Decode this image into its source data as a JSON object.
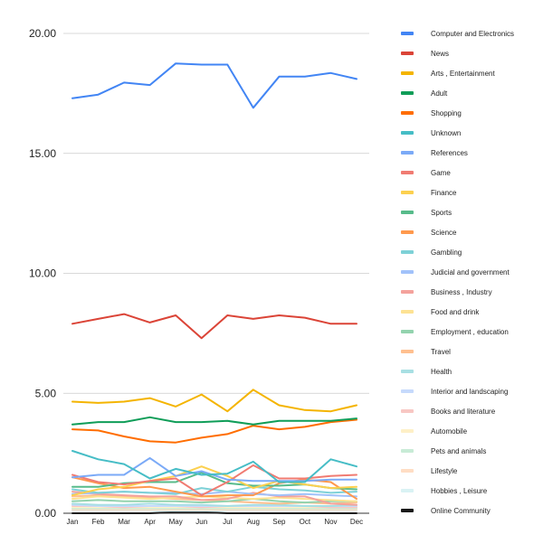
{
  "chart_data": {
    "type": "line",
    "title": "",
    "xlabel": "",
    "ylabel": "",
    "x": [
      "Jan",
      "Feb",
      "Mar",
      "Apr",
      "May",
      "Jun",
      "Jul",
      "Aug",
      "Sep",
      "Oct",
      "Nov",
      "Dec"
    ],
    "ylim": [
      0,
      20
    ],
    "yticks": [
      0,
      5,
      10,
      15,
      20
    ],
    "ytick_labels": [
      "0.00",
      "5.00",
      "10.00",
      "15.00",
      "20.00"
    ],
    "grid": "horizontal",
    "legend_position": "right",
    "series": [
      {
        "name": "Computer and Electronics",
        "color": "#4285F4",
        "values": [
          17.3,
          17.45,
          17.95,
          17.85,
          18.75,
          18.7,
          18.7,
          16.9,
          18.2,
          18.2,
          18.35,
          18.1
        ]
      },
      {
        "name": "News",
        "color": "#DB4437",
        "values": [
          7.9,
          8.1,
          8.3,
          7.95,
          8.25,
          7.3,
          8.25,
          8.1,
          8.25,
          8.15,
          7.9,
          7.9
        ]
      },
      {
        "name": "Arts , Entertainment",
        "color": "#F4B400",
        "values": [
          4.65,
          4.6,
          4.65,
          4.8,
          4.45,
          4.95,
          4.25,
          5.15,
          4.5,
          4.3,
          4.25,
          4.5
        ]
      },
      {
        "name": "Adult",
        "color": "#0F9D58",
        "values": [
          3.7,
          3.8,
          3.8,
          4.0,
          3.8,
          3.8,
          3.85,
          3.7,
          3.85,
          3.85,
          3.85,
          3.95
        ]
      },
      {
        "name": "Shopping",
        "color": "#FF6D00",
        "values": [
          3.5,
          3.45,
          3.2,
          3.0,
          2.95,
          3.15,
          3.3,
          3.65,
          3.5,
          3.6,
          3.8,
          3.9
        ]
      },
      {
        "name": "Unknown",
        "color": "#46BDC6",
        "values": [
          2.6,
          2.25,
          2.05,
          1.45,
          1.85,
          1.6,
          1.65,
          2.15,
          1.3,
          1.3,
          2.25,
          1.95
        ]
      },
      {
        "name": "References",
        "color": "#7BAAF7",
        "values": [
          1.5,
          1.6,
          1.6,
          2.3,
          1.55,
          1.75,
          1.4,
          1.35,
          1.35,
          1.35,
          1.4,
          1.4
        ]
      },
      {
        "name": "Game",
        "color": "#F07B72",
        "values": [
          1.6,
          1.3,
          1.2,
          1.35,
          1.45,
          0.75,
          1.3,
          2.0,
          1.45,
          1.45,
          1.55,
          1.6
        ]
      },
      {
        "name": "Finance",
        "color": "#FCD04F",
        "values": [
          0.75,
          1.0,
          1.1,
          1.35,
          1.55,
          1.95,
          1.55,
          1.05,
          1.35,
          1.2,
          1.05,
          1.1
        ]
      },
      {
        "name": "Sports",
        "color": "#57BB8A",
        "values": [
          1.1,
          1.1,
          1.25,
          1.3,
          1.3,
          1.7,
          1.25,
          1.15,
          1.15,
          1.2,
          1.05,
          1.0
        ]
      },
      {
        "name": "Science",
        "color": "#FF994D",
        "values": [
          1.5,
          1.25,
          1.05,
          1.1,
          0.9,
          0.7,
          0.75,
          0.75,
          1.25,
          1.4,
          1.3,
          0.6
        ]
      },
      {
        "name": "Gambling",
        "color": "#7ED1D7",
        "values": [
          1.0,
          0.85,
          0.9,
          0.85,
          0.8,
          1.05,
          0.9,
          1.1,
          1.0,
          0.95,
          0.85,
          0.9
        ]
      },
      {
        "name": "Judicial and government",
        "color": "#A1C2FA",
        "values": [
          0.8,
          0.85,
          0.9,
          0.85,
          0.85,
          0.8,
          0.9,
          0.8,
          0.75,
          0.8,
          0.75,
          0.7
        ]
      },
      {
        "name": "Business , Industry",
        "color": "#F4A29C",
        "values": [
          0.9,
          0.8,
          0.75,
          0.7,
          0.7,
          0.55,
          0.6,
          0.85,
          0.7,
          0.7,
          0.4,
          0.35
        ]
      },
      {
        "name": "Food and drink",
        "color": "#FDE293",
        "values": [
          0.6,
          0.7,
          0.65,
          0.6,
          0.65,
          0.7,
          0.65,
          0.6,
          0.65,
          0.6,
          0.55,
          0.5
        ]
      },
      {
        "name": "Employment , education",
        "color": "#93D3AE",
        "values": [
          0.5,
          0.55,
          0.5,
          0.5,
          0.5,
          0.45,
          0.5,
          0.6,
          0.5,
          0.45,
          0.5,
          0.5
        ]
      },
      {
        "name": "Travel",
        "color": "#FFBF8F",
        "values": [
          0.7,
          0.75,
          0.7,
          0.65,
          0.6,
          0.55,
          0.5,
          0.45,
          0.4,
          0.45,
          0.4,
          0.45
        ]
      },
      {
        "name": "Health",
        "color": "#A8DFE3",
        "values": [
          0.4,
          0.35,
          0.35,
          0.4,
          0.35,
          0.35,
          0.3,
          0.35,
          0.35,
          0.3,
          0.3,
          0.35
        ]
      },
      {
        "name": "Interior and landscaping",
        "color": "#C6DAFC",
        "values": [
          0.35,
          0.3,
          0.3,
          0.3,
          0.3,
          0.3,
          0.3,
          0.3,
          0.3,
          0.3,
          0.3,
          0.3
        ]
      },
      {
        "name": "Books and literature",
        "color": "#F8C7C3",
        "values": [
          0.3,
          0.3,
          0.25,
          0.3,
          0.3,
          0.25,
          0.3,
          0.3,
          0.3,
          0.3,
          0.25,
          0.25
        ]
      },
      {
        "name": "Automobile",
        "color": "#FEF0C7",
        "values": [
          0.25,
          0.25,
          0.25,
          0.25,
          0.25,
          0.25,
          0.25,
          0.25,
          0.25,
          0.25,
          0.25,
          0.25
        ]
      },
      {
        "name": "Pets and animals",
        "color": "#C8EBD6",
        "values": [
          0.2,
          0.2,
          0.2,
          0.2,
          0.2,
          0.2,
          0.2,
          0.2,
          0.2,
          0.2,
          0.2,
          0.2
        ]
      },
      {
        "name": "Lifestyle",
        "color": "#FFDDC4",
        "values": [
          0.15,
          0.15,
          0.15,
          0.15,
          0.15,
          0.15,
          0.15,
          0.15,
          0.15,
          0.15,
          0.15,
          0.15
        ]
      },
      {
        "name": "Hobbies , Leisure",
        "color": "#D9F2F4",
        "values": [
          0.1,
          0.1,
          0.1,
          0.1,
          0.1,
          0.1,
          0.1,
          0.1,
          0.1,
          0.1,
          0.1,
          0.1
        ]
      },
      {
        "name": "Online Community",
        "color": "#1A1A1A",
        "values": [
          0.0,
          0.0,
          0.0,
          0.0,
          0.05,
          0.05,
          0.0,
          0.0,
          0.0,
          0.0,
          0.0,
          0.0
        ]
      }
    ]
  }
}
